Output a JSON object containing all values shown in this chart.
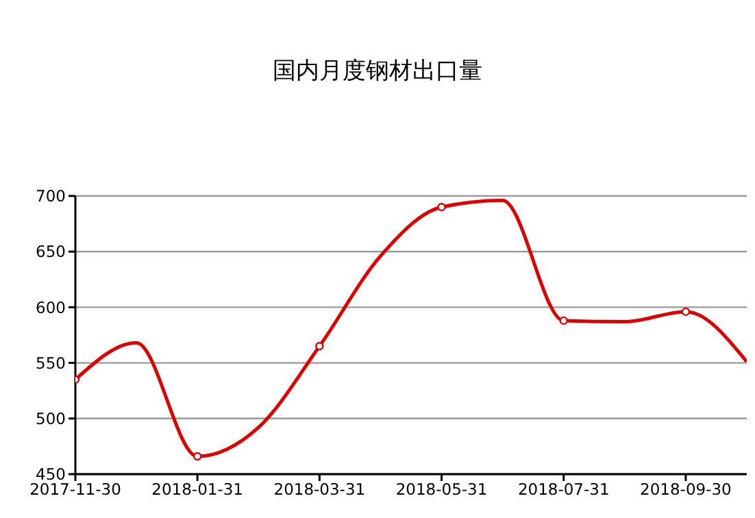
{
  "chart_data": {
    "type": "line",
    "title": "国内月度钢材出口量",
    "categories": [
      "2017-11-30",
      null,
      "2018-01-31",
      null,
      "2018-03-31",
      null,
      "2018-05-31",
      null,
      "2018-07-31",
      null,
      "2018-09-30",
      null
    ],
    "series": [
      {
        "color": "#e00000",
        "values": [
          535,
          568,
          466,
          492,
          565,
          646,
          690,
          696,
          588,
          587,
          596,
          551
        ]
      }
    ],
    "ylim": [
      450,
      700
    ],
    "yticks": [
      450,
      500,
      550,
      600,
      650,
      700
    ],
    "grid": "y",
    "marker": "circle",
    "line_style": "solid"
  }
}
